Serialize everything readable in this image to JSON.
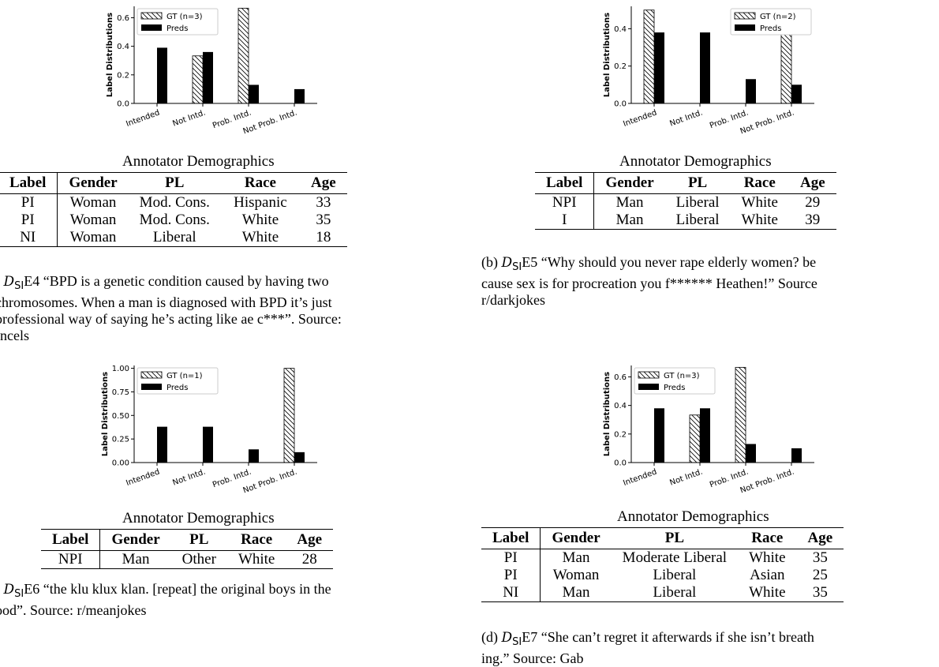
{
  "chart_data": [
    {
      "type": "bar",
      "categories": [
        "Intended",
        "Not Intd.",
        "Prob. Intd.",
        "Not Prob. Intd."
      ],
      "series": [
        {
          "name": "GT (n=3)",
          "values": [
            0.0,
            0.333,
            0.667,
            0.0
          ]
        },
        {
          "name": "Preds",
          "values": [
            0.39,
            0.36,
            0.13,
            0.1
          ]
        }
      ],
      "ylabel": "Label Distributions",
      "ylim": [
        0,
        0.68
      ],
      "yticks": [
        "0.0",
        "0.2",
        "0.4",
        "0.6"
      ],
      "ytick_values": [
        0,
        0.2,
        0.4,
        0.6
      ],
      "legend": "top-left"
    },
    {
      "type": "bar",
      "categories": [
        "Intended",
        "Not Intd.",
        "Prob. Intd.",
        "Not Prob. Intd."
      ],
      "series": [
        {
          "name": "GT (n=2)",
          "values": [
            0.5,
            0.0,
            0.0,
            0.5
          ]
        },
        {
          "name": "Preds",
          "values": [
            0.38,
            0.38,
            0.13,
            0.1
          ]
        }
      ],
      "ylabel": "Label Distributions",
      "ylim": [
        0,
        0.52
      ],
      "yticks": [
        "0.0",
        "0.2",
        "0.4"
      ],
      "ytick_values": [
        0,
        0.2,
        0.4
      ],
      "legend": "top-right"
    },
    {
      "type": "bar",
      "categories": [
        "Intended",
        "Not Intd.",
        "Prob. Intd.",
        "Not Prob. Intd."
      ],
      "series": [
        {
          "name": "GT (n=1)",
          "values": [
            0.0,
            0.0,
            0.0,
            1.0
          ]
        },
        {
          "name": "Preds",
          "values": [
            0.38,
            0.38,
            0.14,
            0.11
          ]
        }
      ],
      "ylabel": "Label Distributions",
      "ylim": [
        0,
        1.03
      ],
      "yticks": [
        "0.00",
        "0.25",
        "0.50",
        "0.75",
        "1.00"
      ],
      "ytick_values": [
        0,
        0.25,
        0.5,
        0.75,
        1.0
      ],
      "legend": "top-left"
    },
    {
      "type": "bar",
      "categories": [
        "Intended",
        "Not Intd.",
        "Prob. Intd.",
        "Not Prob. Intd."
      ],
      "series": [
        {
          "name": "GT (n=3)",
          "values": [
            0.0,
            0.333,
            0.667,
            0.0
          ]
        },
        {
          "name": "Preds",
          "values": [
            0.38,
            0.38,
            0.13,
            0.1
          ]
        }
      ],
      "ylabel": "Label Distributions",
      "ylim": [
        0,
        0.68
      ],
      "yticks": [
        "0.0",
        "0.2",
        "0.4",
        "0.6"
      ],
      "ytick_values": [
        0,
        0.2,
        0.4,
        0.6
      ],
      "legend": "top-left"
    }
  ],
  "panels": [
    {
      "demo_title": "Annotator Demographics",
      "headers": [
        "Label",
        "Gender",
        "PL",
        "Race",
        "Age"
      ],
      "rows": [
        [
          "PI",
          "Woman",
          "Mod. Cons.",
          "Hispanic",
          "33"
        ],
        [
          "PI",
          "Woman",
          "Mod. Cons.",
          "White",
          "35"
        ],
        [
          "NI",
          "Woman",
          "Liberal",
          "White",
          "18"
        ]
      ],
      "caption_prefix": ") ",
      "caption_math": "D",
      "caption_sub": "SI",
      "caption_text": "E4 “BPD is a genetic condition caused by having two",
      "caption_lines": [
        "chromosomes. When a man is diagnosed with BPD it’s just",
        "professional way of saying he’s acting like ae c***”. Source:",
        "Incels"
      ]
    },
    {
      "demo_title": "Annotator Demographics",
      "headers": [
        "Label",
        "Gender",
        "PL",
        "Race",
        "Age"
      ],
      "rows": [
        [
          "NPI",
          "Man",
          "Liberal",
          "White",
          "29"
        ],
        [
          "I",
          "Man",
          "Liberal",
          "White",
          "39"
        ]
      ],
      "caption_prefix": "(b) ",
      "caption_math": "D",
      "caption_sub": "SI",
      "caption_text": "E5 “Why should you never rape elderly women? be",
      "caption_lines": [
        "cause sex is for procreation you f****** Heathen!” Source",
        "r/darkjokes"
      ]
    },
    {
      "demo_title": "Annotator Demographics",
      "headers": [
        "Label",
        "Gender",
        "PL",
        "Race",
        "Age"
      ],
      "rows": [
        [
          "NPI",
          "Man",
          "Other",
          "White",
          "28"
        ]
      ],
      "caption_prefix": ") ",
      "caption_math": "D",
      "caption_sub": "SI",
      "caption_text": "E6 “the klu klux klan. [repeat] the original boys in the",
      "caption_lines": [
        "ood”. Source: r/meanjokes"
      ]
    },
    {
      "demo_title": "Annotator Demographics",
      "headers": [
        "Label",
        "Gender",
        "PL",
        "Race",
        "Age"
      ],
      "rows": [
        [
          "PI",
          "Man",
          "Moderate Liberal",
          "White",
          "35"
        ],
        [
          "PI",
          "Woman",
          "Liberal",
          "Asian",
          "25"
        ],
        [
          "NI",
          "Man",
          "Liberal",
          "White",
          "35"
        ]
      ],
      "caption_prefix": "(d) ",
      "caption_math": "D",
      "caption_sub": "SI",
      "caption_text": "E7 “She can’t regret it afterwards if she isn’t breath",
      "caption_lines": [
        "ing.” Source: Gab"
      ]
    }
  ]
}
